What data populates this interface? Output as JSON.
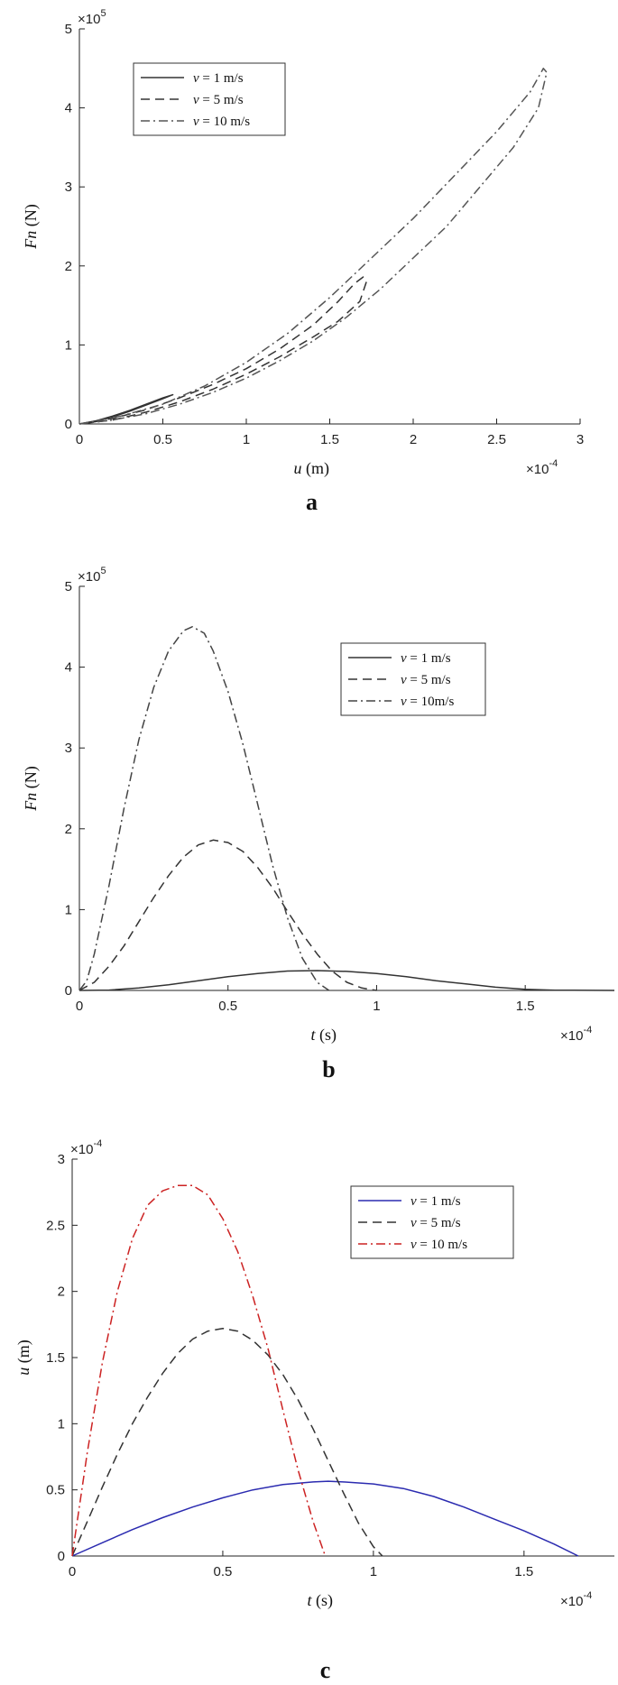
{
  "figure": {
    "panels": [
      {
        "letter": "a",
        "y_multiplier_base": "×10",
        "y_multiplier_exp": "5",
        "x_multiplier_base": "×10",
        "x_multiplier_exp": "-4",
        "ylabel_var": "Fn",
        "ylabel_unit": "(N)",
        "xlabel_var": "u",
        "xlabel_unit": "(m)",
        "legend": [
          {
            "var": "v",
            "rest": " = 1 m/s"
          },
          {
            "var": "v",
            "rest": " = 5 m/s"
          },
          {
            "var": "v",
            "rest": " = 10 m/s"
          }
        ]
      },
      {
        "letter": "b",
        "y_multiplier_base": "×10",
        "y_multiplier_exp": "5",
        "x_multiplier_base": "×10",
        "x_multiplier_exp": "-4",
        "ylabel_var": "Fn",
        "ylabel_unit": "(N)",
        "xlabel_var": "t",
        "xlabel_unit": "(s)",
        "legend": [
          {
            "var": "v",
            "rest": " = 1 m/s"
          },
          {
            "var": "v",
            "rest": " = 5 m/s"
          },
          {
            "var": "v",
            "rest": " = 10m/s"
          }
        ]
      },
      {
        "letter": "c",
        "y_multiplier_base": "×10",
        "y_multiplier_exp": "-4",
        "x_multiplier_base": "×10",
        "x_multiplier_exp": "-4",
        "ylabel_var": "u",
        "ylabel_unit": "(m)",
        "xlabel_var": "t",
        "xlabel_unit": "(s)",
        "legend": [
          {
            "var": "v",
            "rest": " = 1 m/s"
          },
          {
            "var": "v",
            "rest": " = 5 m/s"
          },
          {
            "var": "v",
            "rest": " = 10 m/s"
          }
        ]
      }
    ]
  },
  "chart_data": [
    {
      "type": "line",
      "xlabel": "u (m)",
      "ylabel": "Fn (N)",
      "x_scale_note": "×10^-4",
      "y_scale_note": "×10^5",
      "xlim": [
        0,
        3
      ],
      "ylim": [
        0,
        5
      ],
      "xticks": [
        0,
        0.5,
        1,
        1.5,
        2,
        2.5,
        3
      ],
      "yticks": [
        0,
        1,
        2,
        3,
        4,
        5
      ],
      "legend_position": "top-left",
      "grid": false,
      "series": [
        {
          "name": "v = 1 m/s",
          "style": "solid",
          "color": "#333333",
          "points": [
            [
              0,
              0
            ],
            [
              0.1,
              0.03
            ],
            [
              0.2,
              0.09
            ],
            [
              0.3,
              0.16
            ],
            [
              0.4,
              0.24
            ],
            [
              0.5,
              0.32
            ],
            [
              0.56,
              0.37
            ],
            [
              0.5,
              0.33
            ],
            [
              0.4,
              0.25
            ],
            [
              0.3,
              0.17
            ],
            [
              0.2,
              0.1
            ],
            [
              0.1,
              0.04
            ],
            [
              0,
              0
            ]
          ]
        },
        {
          "name": "v = 5 m/s",
          "style": "dashed",
          "color": "#333333",
          "points": [
            [
              0,
              0
            ],
            [
              0.2,
              0.07
            ],
            [
              0.4,
              0.18
            ],
            [
              0.6,
              0.33
            ],
            [
              0.8,
              0.5
            ],
            [
              1.0,
              0.7
            ],
            [
              1.2,
              0.95
            ],
            [
              1.4,
              1.25
            ],
            [
              1.55,
              1.55
            ],
            [
              1.65,
              1.78
            ],
            [
              1.7,
              1.86
            ],
            [
              1.72,
              1.8
            ],
            [
              1.68,
              1.55
            ],
            [
              1.55,
              1.3
            ],
            [
              1.4,
              1.1
            ],
            [
              1.2,
              0.85
            ],
            [
              1.0,
              0.63
            ],
            [
              0.8,
              0.44
            ],
            [
              0.6,
              0.28
            ],
            [
              0.4,
              0.15
            ],
            [
              0.2,
              0.05
            ],
            [
              0,
              0
            ]
          ]
        },
        {
          "name": "v = 10 m/s",
          "style": "dashdot",
          "color": "#555555",
          "points": [
            [
              0,
              0
            ],
            [
              0.25,
              0.1
            ],
            [
              0.5,
              0.25
            ],
            [
              0.75,
              0.48
            ],
            [
              1.0,
              0.78
            ],
            [
              1.25,
              1.15
            ],
            [
              1.5,
              1.6
            ],
            [
              1.75,
              2.1
            ],
            [
              2.0,
              2.6
            ],
            [
              2.25,
              3.15
            ],
            [
              2.5,
              3.7
            ],
            [
              2.7,
              4.2
            ],
            [
              2.78,
              4.5
            ],
            [
              2.8,
              4.45
            ],
            [
              2.75,
              4.0
            ],
            [
              2.6,
              3.5
            ],
            [
              2.4,
              3.0
            ],
            [
              2.2,
              2.5
            ],
            [
              2.0,
              2.1
            ],
            [
              1.8,
              1.7
            ],
            [
              1.6,
              1.35
            ],
            [
              1.4,
              1.05
            ],
            [
              1.2,
              0.8
            ],
            [
              1.0,
              0.58
            ],
            [
              0.8,
              0.4
            ],
            [
              0.6,
              0.25
            ],
            [
              0.4,
              0.13
            ],
            [
              0.2,
              0.05
            ],
            [
              0,
              0
            ]
          ]
        }
      ]
    },
    {
      "type": "line",
      "xlabel": "t (s)",
      "ylabel": "Fn (N)",
      "x_scale_note": "×10^-4",
      "y_scale_note": "×10^5",
      "xlim": [
        0,
        1.8
      ],
      "ylim": [
        0,
        5
      ],
      "xticks": [
        0,
        0.5,
        1,
        1.5
      ],
      "yticks": [
        0,
        1,
        2,
        3,
        4,
        5
      ],
      "legend_position": "top-right",
      "grid": false,
      "series": [
        {
          "name": "v = 1 m/s",
          "style": "solid",
          "color": "#333333",
          "points": [
            [
              0,
              0
            ],
            [
              0.1,
              0.005
            ],
            [
              0.2,
              0.03
            ],
            [
              0.3,
              0.07
            ],
            [
              0.4,
              0.12
            ],
            [
              0.5,
              0.17
            ],
            [
              0.6,
              0.21
            ],
            [
              0.7,
              0.24
            ],
            [
              0.8,
              0.245
            ],
            [
              0.9,
              0.235
            ],
            [
              1.0,
              0.21
            ],
            [
              1.1,
              0.17
            ],
            [
              1.2,
              0.12
            ],
            [
              1.3,
              0.08
            ],
            [
              1.4,
              0.04
            ],
            [
              1.5,
              0.015
            ],
            [
              1.6,
              0.003
            ],
            [
              1.8,
              0
            ]
          ]
        },
        {
          "name": "v = 5 m/s",
          "style": "dashed",
          "color": "#333333",
          "points": [
            [
              0,
              0
            ],
            [
              0.05,
              0.1
            ],
            [
              0.1,
              0.3
            ],
            [
              0.15,
              0.55
            ],
            [
              0.2,
              0.85
            ],
            [
              0.25,
              1.15
            ],
            [
              0.3,
              1.42
            ],
            [
              0.35,
              1.65
            ],
            [
              0.4,
              1.8
            ],
            [
              0.45,
              1.86
            ],
            [
              0.5,
              1.83
            ],
            [
              0.55,
              1.72
            ],
            [
              0.6,
              1.52
            ],
            [
              0.65,
              1.27
            ],
            [
              0.7,
              0.98
            ],
            [
              0.75,
              0.7
            ],
            [
              0.8,
              0.45
            ],
            [
              0.85,
              0.24
            ],
            [
              0.9,
              0.1
            ],
            [
              0.95,
              0.03
            ],
            [
              1.0,
              0
            ]
          ]
        },
        {
          "name": "v = 10m/s",
          "style": "dashdot",
          "color": "#444444",
          "points": [
            [
              0,
              0
            ],
            [
              0.025,
              0.12
            ],
            [
              0.05,
              0.45
            ],
            [
              0.1,
              1.3
            ],
            [
              0.15,
              2.25
            ],
            [
              0.2,
              3.1
            ],
            [
              0.25,
              3.75
            ],
            [
              0.3,
              4.2
            ],
            [
              0.35,
              4.45
            ],
            [
              0.38,
              4.5
            ],
            [
              0.42,
              4.42
            ],
            [
              0.45,
              4.2
            ],
            [
              0.5,
              3.7
            ],
            [
              0.55,
              3.05
            ],
            [
              0.6,
              2.3
            ],
            [
              0.65,
              1.55
            ],
            [
              0.7,
              0.9
            ],
            [
              0.75,
              0.4
            ],
            [
              0.8,
              0.1
            ],
            [
              0.84,
              0
            ]
          ]
        }
      ]
    },
    {
      "type": "line",
      "xlabel": "t (s)",
      "ylabel": "u (m)",
      "x_scale_note": "×10^-4",
      "y_scale_note": "×10^-4",
      "xlim": [
        0,
        1.8
      ],
      "ylim": [
        0,
        3
      ],
      "xticks": [
        0,
        0.5,
        1,
        1.5
      ],
      "yticks": [
        0,
        0.5,
        1,
        1.5,
        2,
        2.5,
        3
      ],
      "legend_position": "top-right",
      "grid": false,
      "series": [
        {
          "name": "v = 1 m/s",
          "style": "solid",
          "color": "#2b2bb0",
          "points": [
            [
              0,
              0
            ],
            [
              0.1,
              0.1
            ],
            [
              0.2,
              0.2
            ],
            [
              0.3,
              0.29
            ],
            [
              0.4,
              0.37
            ],
            [
              0.5,
              0.44
            ],
            [
              0.6,
              0.5
            ],
            [
              0.7,
              0.54
            ],
            [
              0.8,
              0.56
            ],
            [
              0.85,
              0.565
            ],
            [
              0.9,
              0.56
            ],
            [
              1.0,
              0.545
            ],
            [
              1.1,
              0.51
            ],
            [
              1.2,
              0.45
            ],
            [
              1.3,
              0.37
            ],
            [
              1.4,
              0.28
            ],
            [
              1.5,
              0.19
            ],
            [
              1.6,
              0.09
            ],
            [
              1.68,
              0
            ]
          ]
        },
        {
          "name": "v = 5 m/s",
          "style": "dashed",
          "color": "#333333",
          "points": [
            [
              0,
              0
            ],
            [
              0.05,
              0.26
            ],
            [
              0.1,
              0.52
            ],
            [
              0.15,
              0.77
            ],
            [
              0.2,
              1.0
            ],
            [
              0.25,
              1.2
            ],
            [
              0.3,
              1.38
            ],
            [
              0.35,
              1.53
            ],
            [
              0.4,
              1.64
            ],
            [
              0.45,
              1.7
            ],
            [
              0.5,
              1.72
            ],
            [
              0.55,
              1.7
            ],
            [
              0.6,
              1.63
            ],
            [
              0.65,
              1.52
            ],
            [
              0.7,
              1.37
            ],
            [
              0.75,
              1.18
            ],
            [
              0.8,
              0.96
            ],
            [
              0.85,
              0.72
            ],
            [
              0.9,
              0.48
            ],
            [
              0.95,
              0.25
            ],
            [
              1.0,
              0.07
            ],
            [
              1.03,
              0
            ]
          ]
        },
        {
          "name": "v = 10 m/s",
          "style": "dashdot",
          "color": "#cc2222",
          "points": [
            [
              0,
              0
            ],
            [
              0.05,
              0.78
            ],
            [
              0.1,
              1.46
            ],
            [
              0.15,
              2.0
            ],
            [
              0.2,
              2.4
            ],
            [
              0.25,
              2.65
            ],
            [
              0.3,
              2.76
            ],
            [
              0.35,
              2.8
            ],
            [
              0.4,
              2.8
            ],
            [
              0.45,
              2.73
            ],
            [
              0.5,
              2.55
            ],
            [
              0.55,
              2.3
            ],
            [
              0.6,
              1.96
            ],
            [
              0.65,
              1.57
            ],
            [
              0.7,
              1.1
            ],
            [
              0.75,
              0.65
            ],
            [
              0.8,
              0.26
            ],
            [
              0.84,
              0
            ]
          ]
        }
      ]
    }
  ]
}
